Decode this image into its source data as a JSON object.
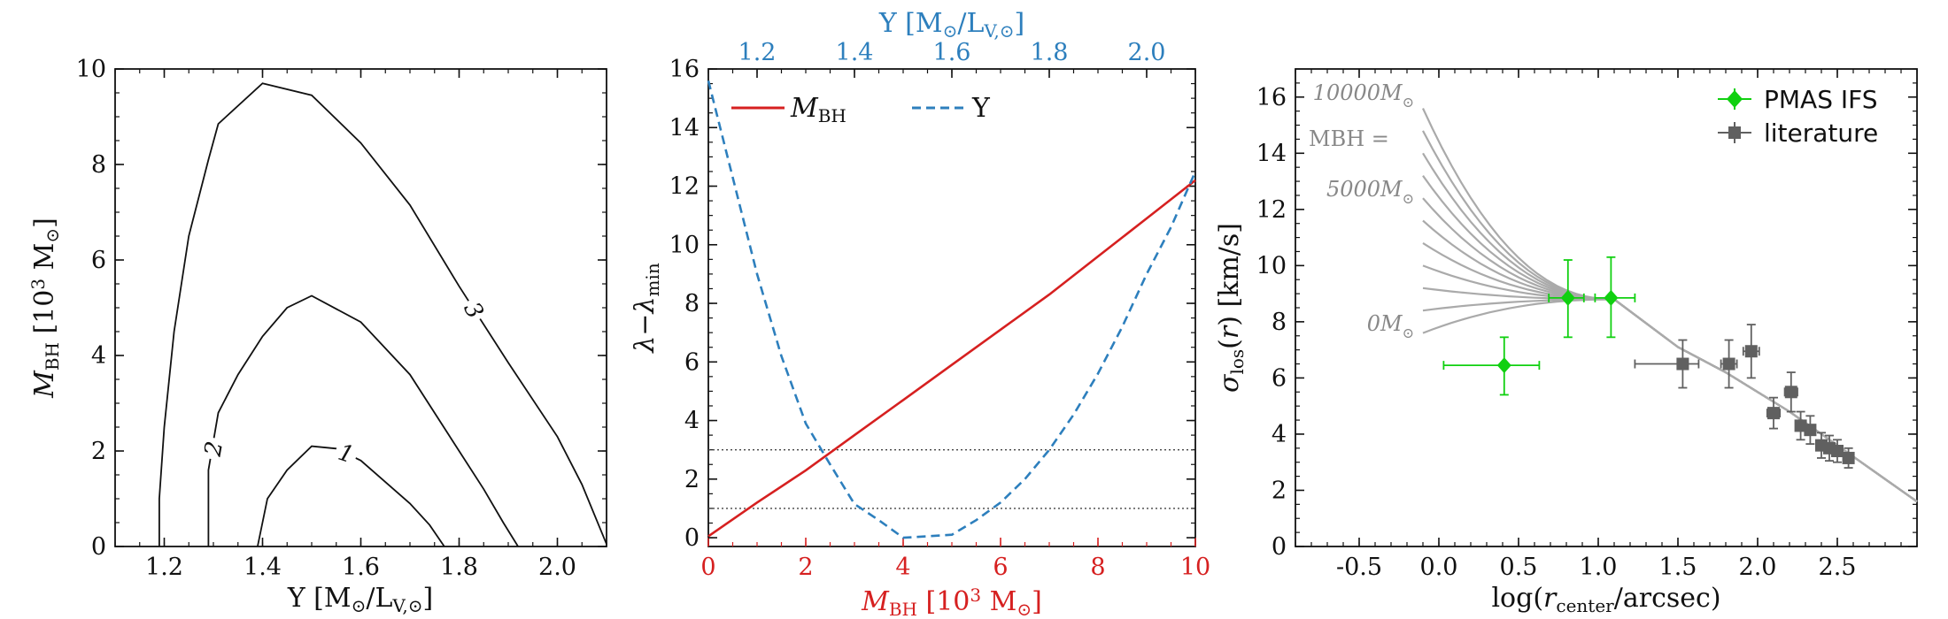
{
  "chart_data": [
    {
      "type": "contour",
      "xlabel": "Υ [M⊙/LV,⊙]",
      "ylabel": "MBH [10³ M⊙]",
      "xlim": [
        1.1,
        2.1
      ],
      "ylim": [
        0,
        10
      ],
      "xticks": [
        "1.2",
        "1.4",
        "1.6",
        "1.8",
        "2.0"
      ],
      "yticks": [
        "0",
        "2",
        "4",
        "6",
        "8",
        "10"
      ],
      "contours": [
        {
          "level": "1",
          "points": [
            [
              1.39,
              0
            ],
            [
              1.41,
              1.0
            ],
            [
              1.45,
              1.6
            ],
            [
              1.5,
              2.1
            ],
            [
              1.55,
              2.05
            ],
            [
              1.6,
              1.8
            ],
            [
              1.65,
              1.35
            ],
            [
              1.7,
              0.9
            ],
            [
              1.74,
              0.45
            ],
            [
              1.77,
              0
            ]
          ]
        },
        {
          "level": "2",
          "points": [
            [
              1.29,
              0
            ],
            [
              1.29,
              1.6
            ],
            [
              1.31,
              2.8
            ],
            [
              1.35,
              3.6
            ],
            [
              1.4,
              4.4
            ],
            [
              1.45,
              5.0
            ],
            [
              1.5,
              5.25
            ],
            [
              1.6,
              4.7
            ],
            [
              1.7,
              3.6
            ],
            [
              1.8,
              2.0
            ],
            [
              1.85,
              1.2
            ],
            [
              1.89,
              0.5
            ],
            [
              1.92,
              0
            ]
          ]
        },
        {
          "level": "3",
          "points": [
            [
              1.19,
              0
            ],
            [
              1.19,
              1.0
            ],
            [
              1.2,
              2.5
            ],
            [
              1.22,
              4.5
            ],
            [
              1.25,
              6.5
            ],
            [
              1.29,
              8.1
            ],
            [
              1.31,
              8.85
            ],
            [
              1.4,
              9.7
            ],
            [
              1.5,
              9.45
            ],
            [
              1.6,
              8.45
            ],
            [
              1.7,
              7.15
            ],
            [
              1.8,
              5.45
            ],
            [
              1.9,
              3.85
            ],
            [
              2.0,
              2.3
            ],
            [
              2.05,
              1.3
            ],
            [
              2.1,
              0.05
            ]
          ]
        }
      ]
    },
    {
      "type": "line",
      "xlabel": "MBH [10³ M⊙]",
      "ylabel": "λ−λmin",
      "top_xlabel": "Υ [M⊙/LV,⊙]",
      "xlim": [
        0,
        10
      ],
      "ylim": [
        -0.3,
        16
      ],
      "top_xlim": [
        1.1,
        2.1
      ],
      "xticks": [
        "0",
        "2",
        "4",
        "6",
        "8",
        "10"
      ],
      "yticks": [
        "0",
        "2",
        "4",
        "6",
        "8",
        "10",
        "12",
        "14",
        "16"
      ],
      "top_xticks": [
        "1.2",
        "1.4",
        "1.6",
        "1.8",
        "2.0"
      ],
      "hlines": [
        1,
        3
      ],
      "series": [
        {
          "name": "MBH",
          "color": "#d62020",
          "style": "solid",
          "axis": "bottom",
          "x": [
            0,
            1,
            2,
            3,
            4,
            5,
            6,
            7,
            8,
            9,
            10
          ],
          "y": [
            0.05,
            1.2,
            2.3,
            3.5,
            4.7,
            5.9,
            7.1,
            8.3,
            9.6,
            10.9,
            12.2
          ]
        },
        {
          "name": "Υ",
          "color": "#2d7fbd",
          "style": "dashed",
          "axis": "top",
          "x": [
            1.1,
            1.15,
            1.2,
            1.25,
            1.3,
            1.35,
            1.4,
            1.45,
            1.5,
            1.55,
            1.6,
            1.65,
            1.7,
            1.75,
            1.8,
            1.85,
            1.9,
            1.95,
            2.0,
            2.05,
            2.1
          ],
          "y": [
            15.6,
            12.3,
            9.0,
            6.2,
            3.9,
            2.5,
            1.15,
            0.6,
            0.0,
            0.05,
            0.1,
            0.6,
            1.2,
            2.0,
            3.0,
            4.2,
            5.6,
            7.2,
            9.0,
            10.6,
            12.5
          ]
        }
      ]
    },
    {
      "type": "scatter",
      "xlabel": "log(rcenter/arcsec)",
      "ylabel": "σlos(r) [km/s]",
      "xlim": [
        -0.9,
        3.0
      ],
      "ylim": [
        0,
        17
      ],
      "xticks": [
        "-0.5",
        "0.0",
        "0.5",
        "1.0",
        "1.5",
        "2.0",
        "2.5"
      ],
      "yticks": [
        "0",
        "2",
        "4",
        "6",
        "8",
        "10",
        "12",
        "14",
        "16"
      ],
      "model_annotations": {
        "top": "10000M",
        "eq": "MBH =",
        "mid": "5000M",
        "low": "0M"
      },
      "legend": [
        "PMAS IFS",
        "literature"
      ],
      "series": [
        {
          "name": "PMAS IFS",
          "color": "#10d010",
          "marker": "diamond",
          "points": [
            {
              "x": 0.41,
              "y": 6.45,
              "xerr": [
                0.38,
                0.22
              ],
              "yerr": [
                1.05,
                1.0
              ]
            },
            {
              "x": 0.81,
              "y": 8.85,
              "xerr": [
                0.12,
                0.1
              ],
              "yerr": [
                1.4,
                1.35
              ]
            },
            {
              "x": 1.08,
              "y": 8.85,
              "xerr": [
                0.1,
                0.15
              ],
              "yerr": [
                1.4,
                1.45
              ]
            }
          ]
        },
        {
          "name": "literature",
          "color": "#606060",
          "marker": "square",
          "points": [
            {
              "x": 1.53,
              "y": 6.5,
              "xerr": [
                0.3,
                0.1
              ],
              "yerr": [
                0.85,
                0.85
              ]
            },
            {
              "x": 1.82,
              "y": 6.5,
              "xerr": [
                0.05,
                0.05
              ],
              "yerr": [
                0.85,
                0.85
              ]
            },
            {
              "x": 1.96,
              "y": 6.95,
              "xerr": [
                0.05,
                0.05
              ],
              "yerr": [
                0.95,
                0.95
              ]
            },
            {
              "x": 2.1,
              "y": 4.75,
              "xerr": [
                0.04,
                0.04
              ],
              "yerr": [
                0.55,
                0.55
              ]
            },
            {
              "x": 2.21,
              "y": 5.5,
              "xerr": [
                0.04,
                0.04
              ],
              "yerr": [
                0.7,
                0.7
              ]
            },
            {
              "x": 2.27,
              "y": 4.3,
              "xerr": [
                0.03,
                0.03
              ],
              "yerr": [
                0.5,
                0.5
              ]
            },
            {
              "x": 2.33,
              "y": 4.15,
              "xerr": [
                0.03,
                0.03
              ],
              "yerr": [
                0.5,
                0.5
              ]
            },
            {
              "x": 2.4,
              "y": 3.6,
              "xerr": [
                0.03,
                0.03
              ],
              "yerr": [
                0.45,
                0.45
              ]
            },
            {
              "x": 2.45,
              "y": 3.5,
              "xerr": [
                0.03,
                0.03
              ],
              "yerr": [
                0.45,
                0.45
              ]
            },
            {
              "x": 2.5,
              "y": 3.4,
              "xerr": [
                0.03,
                0.03
              ],
              "yerr": [
                0.4,
                0.4
              ]
            },
            {
              "x": 2.57,
              "y": 3.15,
              "xerr": [
                0.03,
                0.03
              ],
              "yerr": [
                0.35,
                0.35
              ]
            }
          ]
        }
      ],
      "models": {
        "mbh_values": [
          0,
          1000,
          2000,
          3000,
          4000,
          5000,
          6000,
          7000,
          8000,
          9000,
          10000
        ],
        "x_start": -0.1,
        "y_start": [
          7.6,
          8.4,
          9.2,
          10.0,
          10.8,
          11.6,
          12.4,
          13.2,
          14.0,
          14.8,
          15.6
        ],
        "merge_x": 1.1,
        "merge_y": 8.8,
        "tail": [
          [
            1.5,
            7.1
          ],
          [
            1.8,
            6.2
          ],
          [
            2.0,
            5.5
          ],
          [
            2.2,
            4.8
          ],
          [
            2.4,
            4.0
          ],
          [
            2.6,
            3.2
          ],
          [
            2.8,
            2.4
          ],
          [
            3.0,
            1.6
          ]
        ],
        "color": "#aaaaaa"
      }
    }
  ]
}
